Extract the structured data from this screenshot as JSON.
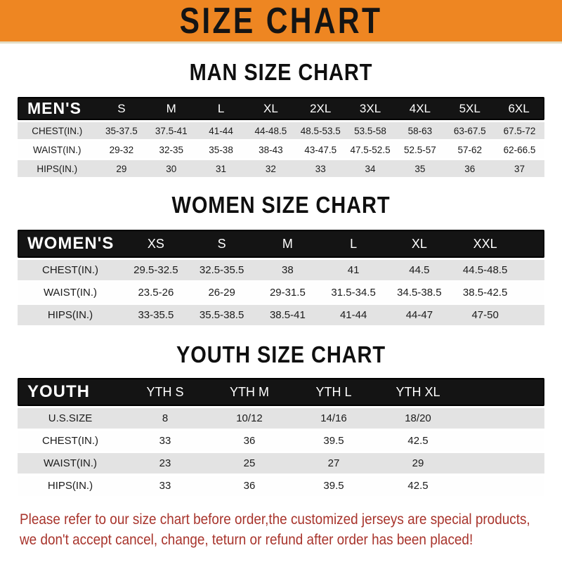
{
  "banner": {
    "title": "SIZE CHART"
  },
  "sections": [
    {
      "heading": "MAN SIZE CHART",
      "table": {
        "header": [
          "MEN'S",
          "S",
          "M",
          "L",
          "XL",
          "2XL",
          "3XL",
          "4XL",
          "5XL",
          "6XL"
        ],
        "rows": [
          [
            "CHEST(IN.)",
            "35-37.5",
            "37.5-41",
            "41-44",
            "44-48.5",
            "48.5-53.5",
            "53.5-58",
            "58-63",
            "63-67.5",
            "67.5-72"
          ],
          [
            "WAIST(IN.)",
            "29-32",
            "32-35",
            "35-38",
            "38-43",
            "43-47.5",
            "47.5-52.5",
            "52.5-57",
            "57-62",
            "62-66.5"
          ],
          [
            "HIPS(IN.)",
            "29",
            "30",
            "31",
            "32",
            "33",
            "34",
            "35",
            "36",
            "37"
          ]
        ]
      }
    },
    {
      "heading": "WOMEN SIZE CHART",
      "table": {
        "header": [
          "WOMEN'S",
          "XS",
          "S",
          "M",
          "L",
          "XL",
          "XXL"
        ],
        "rows": [
          [
            "CHEST(IN.)",
            "29.5-32.5",
            "32.5-35.5",
            "38",
            "41",
            "44.5",
            "44.5-48.5"
          ],
          [
            "WAIST(IN.)",
            "23.5-26",
            "26-29",
            "29-31.5",
            "31.5-34.5",
            "34.5-38.5",
            "38.5-42.5"
          ],
          [
            "HIPS(IN.)",
            "33-35.5",
            "35.5-38.5",
            "38.5-41",
            "41-44",
            "44-47",
            "47-50"
          ]
        ]
      }
    },
    {
      "heading": "YOUTH SIZE CHART",
      "table": {
        "header": [
          "YOUTH",
          "YTH S",
          "YTH M",
          "YTH L",
          "YTH XL"
        ],
        "rows": [
          [
            "U.S.SIZE",
            "8",
            "10/12",
            "14/16",
            "18/20"
          ],
          [
            "CHEST(IN.)",
            "33",
            "36",
            "39.5",
            "42.5"
          ],
          [
            "WAIST(IN.)",
            "23",
            "25",
            "27",
            "29"
          ],
          [
            "HIPS(IN.)",
            "33",
            "36",
            "39.5",
            "42.5"
          ]
        ]
      }
    }
  ],
  "footer": {
    "line1": "Please refer to our size chart before order,the customized jerseys are special products,",
    "line2": "we don't accept cancel, change, teturn or refund after order has been placed!"
  },
  "colors": {
    "banner_bg": "#ee8622",
    "header_bg": "#141414",
    "row_alt_bg": "#e3e3e3",
    "footer_text": "#a8342c"
  }
}
